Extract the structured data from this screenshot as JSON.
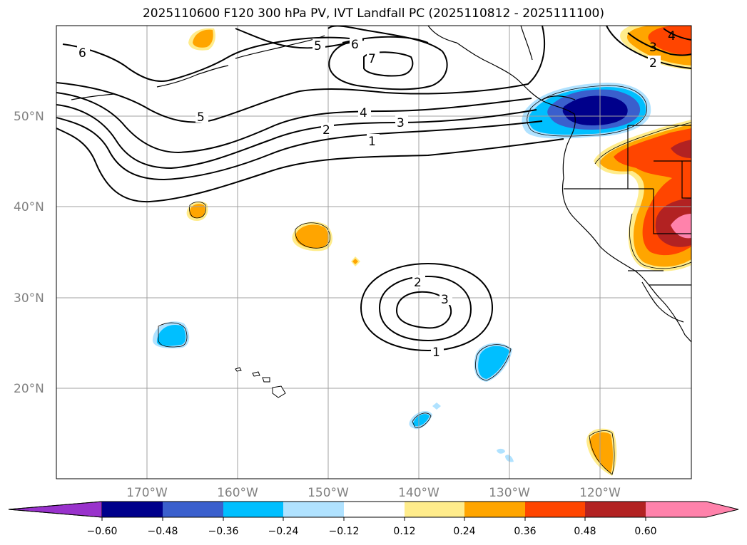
{
  "title": "2025110600 F120 300 hPa PV, IVT Landfall PC (2025110812 - 2025111100)",
  "colors": {
    "grid": "#a0a0a0",
    "contour": "#000000",
    "levels": [
      "#9932cc",
      "#00008b",
      "#3a5fcd",
      "#00bfff",
      "#b0e2ff",
      "#ffffff",
      "#ffec8b",
      "#ffa500",
      "#ff4500",
      "#b22222",
      "#ff82ab"
    ]
  },
  "lon_labels": [
    "170°W",
    "160°W",
    "150°W",
    "140°W",
    "130°W",
    "120°W"
  ],
  "lat_labels": [
    "50°N",
    "40°N",
    "30°N",
    "20°N"
  ],
  "colorbar_ticks": [
    "−0.60",
    "−0.48",
    "−0.36",
    "−0.24",
    "−0.12",
    "0.12",
    "0.24",
    "0.36",
    "0.48",
    "0.60"
  ],
  "contour_labels": [
    "6",
    "5",
    "6",
    "7",
    "5",
    "4",
    "3",
    "2",
    "1",
    "2",
    "3",
    "1",
    "4",
    "3",
    "2"
  ]
}
